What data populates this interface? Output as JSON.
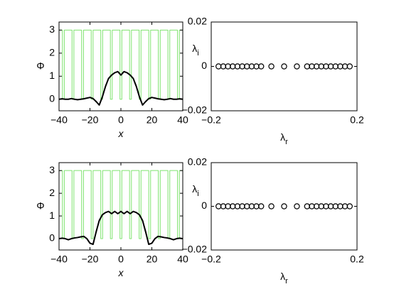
{
  "chart_data": [
    {
      "type": "line",
      "y_label": "Φ",
      "x_label": "x",
      "xlim": [
        -40,
        40
      ],
      "ylim": [
        -0.5,
        3.35
      ],
      "xticks": [
        {
          "value": -40,
          "label": "−40"
        },
        {
          "value": -20,
          "label": "−20"
        },
        0,
        20,
        40
      ],
      "yticks": [
        0,
        1,
        2,
        3
      ],
      "series": [
        {
          "color": "#7fe36f",
          "width": 1,
          "x": [
            -40,
            -37.8,
            -37.8,
            -36.6,
            -36.6,
            -31.6,
            -31.6,
            -30.4,
            -30.4,
            -25.4,
            -25.4,
            -24.2,
            -24.2,
            -19.2,
            -19.2,
            -18,
            -18,
            -13,
            -13,
            -11.8,
            -11.8,
            -6.8,
            -6.8,
            -5.6,
            -5.6,
            -0.6,
            -0.6,
            0.6,
            0.6,
            5.6,
            5.6,
            6.8,
            6.8,
            11.8,
            11.8,
            13,
            13,
            18,
            18,
            19.2,
            19.2,
            24.2,
            24.2,
            25.4,
            25.4,
            30.4,
            30.4,
            31.6,
            31.6,
            36.6,
            36.6,
            37.8,
            37.8,
            40
          ],
          "values": [
            3,
            3,
            0,
            0,
            3,
            3,
            0,
            0,
            3,
            3,
            0,
            0,
            3,
            3,
            0,
            0,
            3,
            3,
            0,
            0,
            3,
            3,
            0,
            0,
            3,
            3,
            0,
            0,
            3,
            3,
            0,
            0,
            3,
            3,
            0,
            0,
            3,
            3,
            0,
            0,
            3,
            3,
            0,
            0,
            3,
            3,
            0,
            0,
            3,
            3,
            0,
            0,
            3,
            3
          ]
        },
        {
          "color": "#000000",
          "width": 2,
          "x": [
            -40,
            -38,
            -36,
            -34,
            -32,
            -30,
            -28,
            -26,
            -24,
            -22,
            -20,
            -18,
            -16,
            -14,
            -12,
            -10,
            -8,
            -6,
            -4,
            -2,
            0,
            2,
            4,
            6,
            8,
            10,
            12,
            14,
            16,
            18,
            20,
            22,
            24,
            26,
            28,
            30,
            32,
            34,
            36,
            38,
            40
          ],
          "values": [
            0,
            0.02,
            0,
            0,
            0.03,
            0,
            -0.02,
            0,
            0.02,
            0.05,
            0.08,
            0.03,
            -0.1,
            -0.25,
            0.1,
            0.55,
            0.9,
            1.05,
            1.15,
            1.2,
            1.05,
            1.2,
            1.15,
            1.05,
            0.9,
            0.55,
            0.1,
            -0.25,
            -0.1,
            0.03,
            0.08,
            0.05,
            0.02,
            0,
            -0.02,
            0,
            0.03,
            0,
            0,
            0.02,
            0
          ]
        }
      ]
    },
    {
      "type": "scatter",
      "y_label": "λ",
      "y_label_sub": "i",
      "x_label": "λ",
      "x_label_sub": "r",
      "xlim": [
        -0.2,
        0.2
      ],
      "ylim": [
        -0.02,
        0.02
      ],
      "xticks": [
        {
          "value": -0.2,
          "label": "−0.2"
        },
        0.2
      ],
      "yticks": [
        {
          "value": -0.02,
          "label": "−0.02"
        },
        0,
        0.02
      ],
      "color": "#000000",
      "x": [
        -0.18,
        -0.167,
        -0.154,
        -0.141,
        -0.128,
        -0.115,
        -0.102,
        -0.089,
        -0.076,
        -0.063,
        -0.035,
        0,
        0.035,
        0.063,
        0.076,
        0.089,
        0.102,
        0.115,
        0.128,
        0.141,
        0.154,
        0.167,
        0.18
      ],
      "values": [
        0,
        0,
        0,
        0,
        0,
        0,
        0,
        0,
        0,
        0,
        0,
        0,
        0,
        0,
        0,
        0,
        0,
        0,
        0,
        0,
        0,
        0,
        0
      ]
    },
    {
      "type": "line",
      "y_label": "Φ",
      "x_label": "x",
      "xlim": [
        -40,
        40
      ],
      "ylim": [
        -0.5,
        3.35
      ],
      "xticks": [
        {
          "value": -40,
          "label": "−40"
        },
        {
          "value": -20,
          "label": "−20"
        },
        0,
        20,
        40
      ],
      "yticks": [
        0,
        1,
        2,
        3
      ],
      "series": [
        {
          "color": "#7fe36f",
          "width": 1,
          "x": [
            -40,
            -37.8,
            -37.8,
            -36.6,
            -36.6,
            -31.6,
            -31.6,
            -30.4,
            -30.4,
            -25.4,
            -25.4,
            -24.2,
            -24.2,
            -19.2,
            -19.2,
            -18,
            -18,
            -13,
            -13,
            -11.8,
            -11.8,
            -6.8,
            -6.8,
            -5.6,
            -5.6,
            -0.6,
            -0.6,
            0.6,
            0.6,
            5.6,
            5.6,
            6.8,
            6.8,
            11.8,
            11.8,
            13,
            13,
            18,
            18,
            19.2,
            19.2,
            24.2,
            24.2,
            25.4,
            25.4,
            30.4,
            30.4,
            31.6,
            31.6,
            36.6,
            36.6,
            37.8,
            37.8,
            40
          ],
          "values": [
            3,
            3,
            0,
            0,
            3,
            3,
            0,
            0,
            3,
            3,
            0,
            0,
            3,
            3,
            0,
            0,
            3,
            3,
            0,
            0,
            3,
            3,
            0,
            0,
            3,
            3,
            0,
            0,
            3,
            3,
            0,
            0,
            3,
            3,
            0,
            0,
            3,
            3,
            0,
            0,
            3,
            3,
            0,
            0,
            3,
            3,
            0,
            0,
            3,
            3,
            0,
            0,
            3,
            3
          ]
        },
        {
          "color": "#000000",
          "width": 2,
          "x": [
            -40,
            -38,
            -36,
            -34,
            -32,
            -30,
            -28,
            -26,
            -24,
            -22,
            -20,
            -18,
            -16,
            -14,
            -12,
            -10,
            -8,
            -6,
            -4,
            -2,
            0,
            2,
            4,
            6,
            8,
            10,
            12,
            14,
            16,
            18,
            20,
            22,
            24,
            26,
            28,
            30,
            32,
            34,
            36,
            38,
            40
          ],
          "values": [
            0,
            0.02,
            0,
            -0.05,
            0,
            0.03,
            0.05,
            0.08,
            0.1,
            0,
            -0.2,
            -0.25,
            0.3,
            0.8,
            1.05,
            1.15,
            1.2,
            1.1,
            1.2,
            1.1,
            1.2,
            1.1,
            1.2,
            1.1,
            1.2,
            1.15,
            1.05,
            0.8,
            0.3,
            -0.25,
            -0.2,
            0,
            0.1,
            0.08,
            0.05,
            0.03,
            0,
            -0.05,
            0,
            0.02,
            0
          ]
        }
      ]
    },
    {
      "type": "scatter",
      "y_label": "λ",
      "y_label_sub": "i",
      "x_label": "λ",
      "x_label_sub": "r",
      "xlim": [
        -0.2,
        0.2
      ],
      "ylim": [
        -0.02,
        0.02
      ],
      "xticks": [
        {
          "value": -0.2,
          "label": "−0.2"
        },
        0.2
      ],
      "yticks": [
        {
          "value": -0.02,
          "label": "−0.02"
        },
        0,
        0.02
      ],
      "color": "#000000",
      "x": [
        -0.18,
        -0.167,
        -0.154,
        -0.141,
        -0.128,
        -0.115,
        -0.102,
        -0.089,
        -0.076,
        -0.063,
        -0.035,
        0,
        0.035,
        0.063,
        0.076,
        0.089,
        0.102,
        0.115,
        0.128,
        0.141,
        0.154,
        0.167,
        0.18
      ],
      "values": [
        0,
        0,
        0,
        0,
        0,
        0,
        0,
        0,
        0,
        0,
        0,
        0,
        0,
        0,
        0,
        0,
        0,
        0,
        0,
        0,
        0,
        0,
        0
      ]
    }
  ]
}
